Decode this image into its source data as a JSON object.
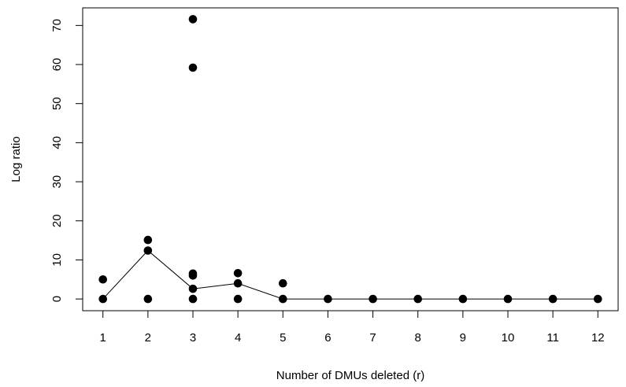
{
  "chart_data": {
    "type": "scatter",
    "title": "",
    "xlabel": "Number of DMUs deleted (r)",
    "ylabel": "Log ratio",
    "xlim": [
      0.55,
      12.45
    ],
    "ylim": [
      -3,
      74.5
    ],
    "x_ticks": [
      1,
      2,
      3,
      4,
      5,
      6,
      7,
      8,
      9,
      10,
      11,
      12
    ],
    "x_tick_labels": [
      "1",
      "2",
      "3",
      "4",
      "5",
      "6",
      "7",
      "8",
      "9",
      "10",
      "11",
      "12"
    ],
    "y_ticks": [
      0,
      10,
      20,
      30,
      40,
      50,
      60,
      70
    ],
    "y_tick_labels": [
      "0",
      "10",
      "20",
      "30",
      "40",
      "50",
      "60",
      "70"
    ],
    "grid": false,
    "legend": "none",
    "points": [
      {
        "x": 1,
        "y": 0
      },
      {
        "x": 1,
        "y": 5
      },
      {
        "x": 2,
        "y": 0
      },
      {
        "x": 2,
        "y": 12.4
      },
      {
        "x": 2,
        "y": 15.1
      },
      {
        "x": 3,
        "y": 0
      },
      {
        "x": 3,
        "y": 2.6
      },
      {
        "x": 3,
        "y": 6
      },
      {
        "x": 3,
        "y": 6.5
      },
      {
        "x": 3,
        "y": 59.2
      },
      {
        "x": 3,
        "y": 71.6
      },
      {
        "x": 4,
        "y": 0
      },
      {
        "x": 4,
        "y": 4
      },
      {
        "x": 4,
        "y": 6.6
      },
      {
        "x": 5,
        "y": 0
      },
      {
        "x": 5,
        "y": 4
      },
      {
        "x": 6,
        "y": 0
      },
      {
        "x": 7,
        "y": 0
      },
      {
        "x": 8,
        "y": 0
      },
      {
        "x": 9,
        "y": 0
      },
      {
        "x": 10,
        "y": 0
      },
      {
        "x": 11,
        "y": 0
      },
      {
        "x": 12,
        "y": 0
      }
    ],
    "line": {
      "x": [
        1,
        2,
        3,
        4,
        5,
        6,
        7,
        8,
        9,
        10,
        11,
        12
      ],
      "y": [
        0,
        12.4,
        2.6,
        4,
        0,
        0,
        0,
        0,
        0,
        0,
        0,
        0
      ]
    },
    "colors": {
      "points": "#000000",
      "line": "#000000",
      "frame": "#000000"
    }
  }
}
